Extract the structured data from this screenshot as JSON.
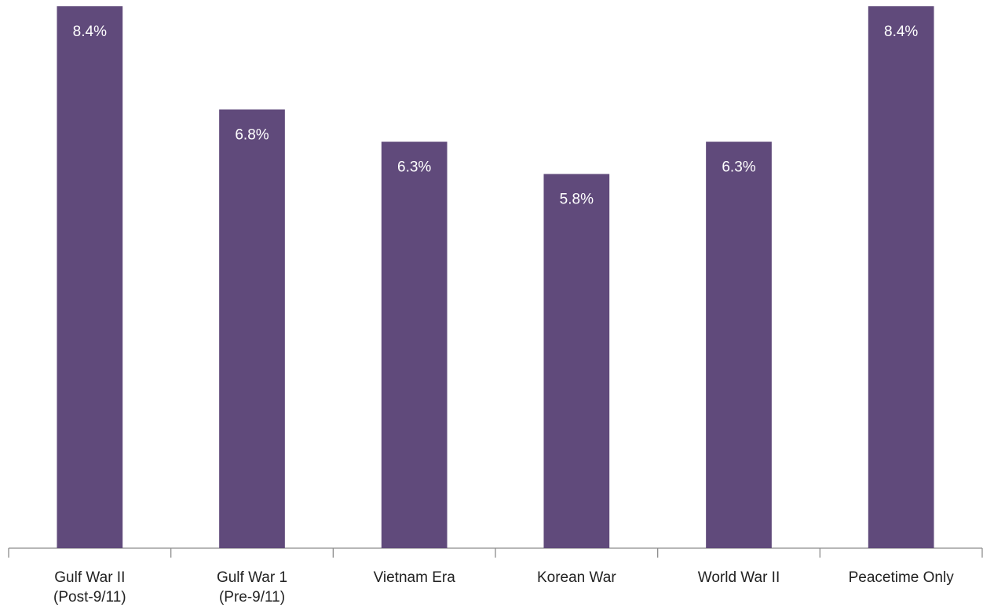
{
  "chart_data": {
    "type": "bar",
    "categories": [
      "Gulf War II\n(Post-9/11)",
      "Gulf War 1\n(Pre-9/11)",
      "Vietnam Era",
      "Korean War",
      "World War II",
      "Peacetime Only"
    ],
    "values": [
      8.4,
      6.8,
      6.3,
      5.8,
      6.3,
      8.4
    ],
    "value_labels": [
      "8.4%",
      "6.8%",
      "6.3%",
      "5.8%",
      "6.3%",
      "8.4%"
    ],
    "color": "#604a7b",
    "ylim": [
      0,
      8.4
    ]
  }
}
